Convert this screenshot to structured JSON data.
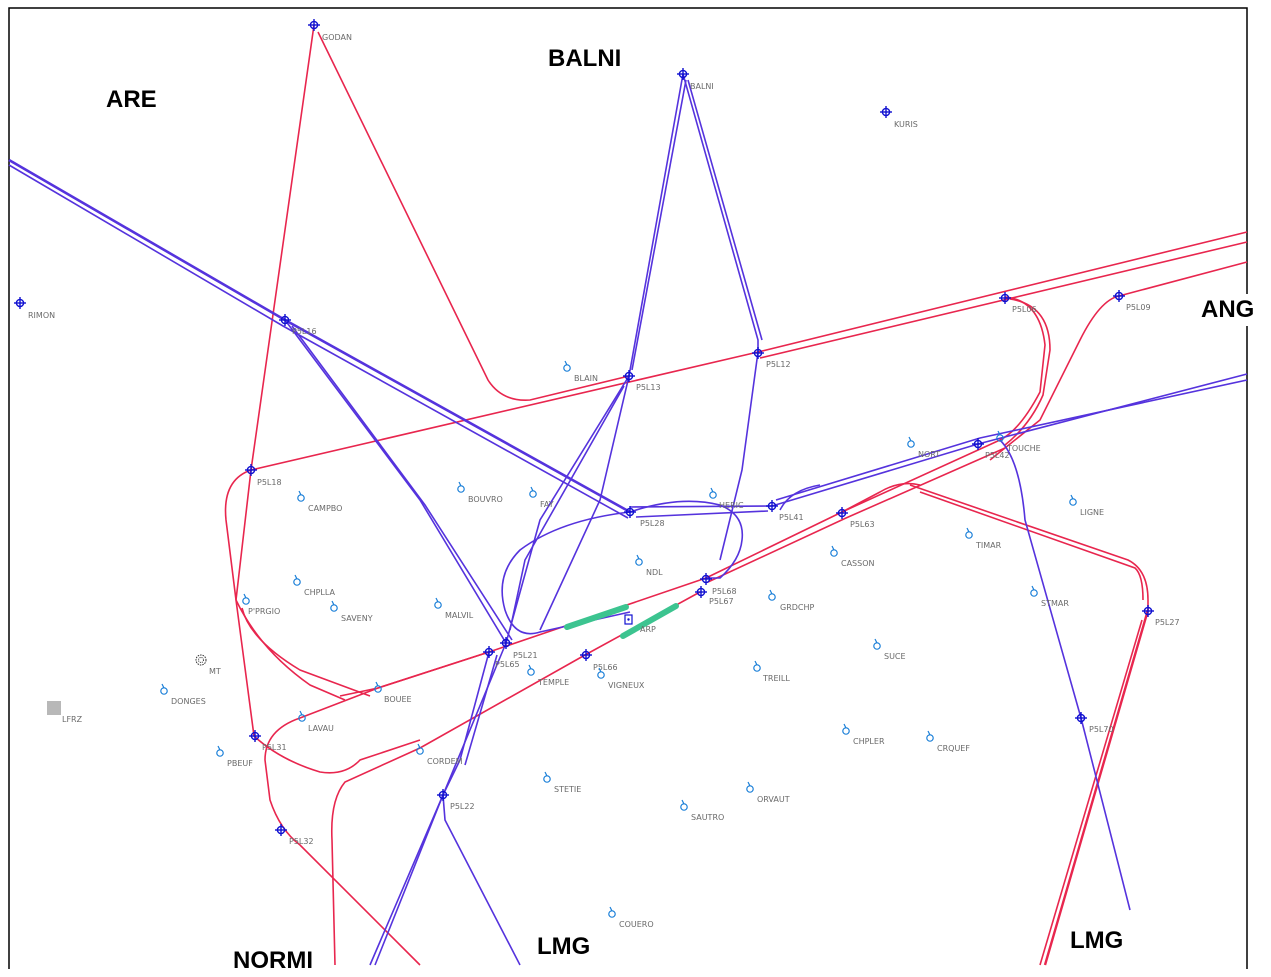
{
  "colors": {
    "route_blue": "#5533dd",
    "route_red": "#e8264e",
    "runway": "#3cc490",
    "waypoint": "#1010d0",
    "navaid": "#1a7fd8",
    "label": "#6a6a6a",
    "frame": "#000000"
  },
  "sector_labels": {
    "are": "ARE",
    "balni": "BALNI",
    "ang": "ANG",
    "lmg_south": "LMG",
    "lmg_east": "LMG",
    "normi": "NORMI"
  },
  "waypoints": [
    {
      "id": "GODAN",
      "label": "GODAN"
    },
    {
      "id": "BALNI",
      "label": "BALNI"
    },
    {
      "id": "KURIS",
      "label": "KURIS"
    },
    {
      "id": "RIMON",
      "label": "RIMON"
    },
    {
      "id": "P5L16",
      "label": "P5L16"
    },
    {
      "id": "P5L13",
      "label": "P5L13"
    },
    {
      "id": "P5L12",
      "label": "P5L12"
    },
    {
      "id": "P5L06",
      "label": "P5L06"
    },
    {
      "id": "P5L09",
      "label": "P5L09"
    },
    {
      "id": "P5L18",
      "label": "P5L18"
    },
    {
      "id": "P5L28",
      "label": "P5L28"
    },
    {
      "id": "P5L41",
      "label": "P5L41"
    },
    {
      "id": "P5L42",
      "label": "P5L42"
    },
    {
      "id": "P5L63",
      "label": "P5L63"
    },
    {
      "id": "P5L68",
      "label": "P5L68"
    },
    {
      "id": "P5L67",
      "label": "P5L67"
    },
    {
      "id": "P5L21",
      "label": "P5L21"
    },
    {
      "id": "P5L65",
      "label": "P5L65"
    },
    {
      "id": "P5L66",
      "label": "P5L66"
    },
    {
      "id": "P5L31",
      "label": "P5L31"
    },
    {
      "id": "P5L32",
      "label": "P5L32"
    },
    {
      "id": "P5L22",
      "label": "P5L22"
    },
    {
      "id": "P5L27",
      "label": "P5L27"
    },
    {
      "id": "P5L70",
      "label": "P5L70"
    }
  ],
  "navaids": [
    {
      "id": "BLAIN",
      "label": "BLAIN"
    },
    {
      "id": "BOUVRO",
      "label": "BOUVRO"
    },
    {
      "id": "FAY",
      "label": "FAY"
    },
    {
      "id": "HERIC",
      "label": "HERIC"
    },
    {
      "id": "NORT",
      "label": "NORT"
    },
    {
      "id": "TOUCHE",
      "label": "TOUCHE"
    },
    {
      "id": "LIGNE",
      "label": "LIGNE"
    },
    {
      "id": "TIMAR",
      "label": "TIMAR"
    },
    {
      "id": "CASSON",
      "label": "CASSON"
    },
    {
      "id": "NDL",
      "label": "NDL"
    },
    {
      "id": "CAMPBO",
      "label": "CAMPBO"
    },
    {
      "id": "CHPLLA",
      "label": "CHPLLA"
    },
    {
      "id": "SAVENY",
      "label": "SAVENY"
    },
    {
      "id": "MALVIL",
      "label": "MALVIL"
    },
    {
      "id": "PPRGIO",
      "label": "P'PRGIO"
    },
    {
      "id": "GRDCHP",
      "label": "GRDCHP"
    },
    {
      "id": "STMAR",
      "label": "STMAR"
    },
    {
      "id": "SUCE",
      "label": "SUCE"
    },
    {
      "id": "TREILL",
      "label": "TREILL"
    },
    {
      "id": "VIGNEUX",
      "label": "VIGNEUX"
    },
    {
      "id": "TEMPLE",
      "label": "TEMPLE"
    },
    {
      "id": "BOUEE",
      "label": "BOUEE"
    },
    {
      "id": "DONGES",
      "label": "DONGES"
    },
    {
      "id": "LAVAU",
      "label": "LAVAU"
    },
    {
      "id": "PBEUF",
      "label": "PBEUF"
    },
    {
      "id": "CORDEM",
      "label": "CORDEM"
    },
    {
      "id": "STETIE",
      "label": "STETIE"
    },
    {
      "id": "SAUTRO",
      "label": "SAUTRO"
    },
    {
      "id": "ORVAUT",
      "label": "ORVAUT"
    },
    {
      "id": "CHPLER",
      "label": "CHPLER"
    },
    {
      "id": "CRQUEF",
      "label": "CRQUEF"
    },
    {
      "id": "COUERO",
      "label": "COUERO"
    }
  ],
  "special_points": [
    {
      "id": "MT",
      "label": "MT"
    },
    {
      "id": "LFRZ",
      "label": "LFRZ"
    },
    {
      "id": "ARP",
      "label": "ARP"
    }
  ]
}
